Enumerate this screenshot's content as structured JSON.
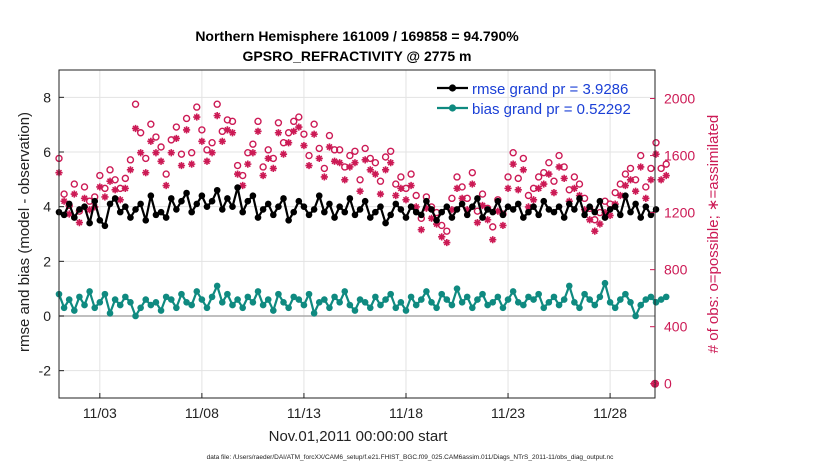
{
  "chart_data": {
    "type": "line",
    "title_line1": "Northern Hemisphere 161009 / 169858 = 94.790%",
    "title_line2": "GPSRO_REFRACTIVITY @ 2775 m",
    "xlabel": "Nov.01,2011 00:00:00 start",
    "ylabel": "rmse and bias (model - observation)",
    "ylabel_right": "# of obs: o=possible; ∗=assimilated",
    "footer": "data file: /Users/raeder/DAI/ATM_forcXX/CAM6_setup/f.e21.FHIST_BGC.f09_025.CAM6assim.011/Diags_NTrS_2011-11/obs_diag_output.nc",
    "xlim": [
      1,
      30.2
    ],
    "ylim": [
      -3,
      9
    ],
    "ylim_right": [
      -100,
      2200
    ],
    "x_tick_values": [
      3,
      8,
      13,
      18,
      23,
      28
    ],
    "x_tick_labels": [
      "11/03",
      "11/08",
      "11/13",
      "11/18",
      "11/23",
      "11/28"
    ],
    "y_ticks": [
      -2,
      0,
      2,
      4,
      6,
      8
    ],
    "y_ticks_right": [
      0,
      400,
      800,
      1200,
      1600,
      2000
    ],
    "grid": true,
    "legend_position": "top-right",
    "colors": {
      "rmse": "#000000",
      "bias": "#0f8a80",
      "obs": "#cc1a55",
      "zero_line": "#aaaaaa",
      "grid": "#e3e3e3"
    },
    "series": [
      {
        "name": "rmse grand pr = 3.9286",
        "axis": "left",
        "marker": "filled-circle",
        "x_start": 1.0,
        "x_step": 0.25,
        "values": [
          3.8,
          3.7,
          4.1,
          3.6,
          3.9,
          4.0,
          3.4,
          4.2,
          3.5,
          3.3,
          4.1,
          4.3,
          3.8,
          4.0,
          3.6,
          3.9,
          4.1,
          3.5,
          4.4,
          3.7,
          3.8,
          3.6,
          4.3,
          3.9,
          4.2,
          4.5,
          3.8,
          4.1,
          4.4,
          4.0,
          4.2,
          4.6,
          3.9,
          4.3,
          4.0,
          4.7,
          3.8,
          4.2,
          4.4,
          3.6,
          3.9,
          4.1,
          3.7,
          4.0,
          4.3,
          3.5,
          3.8,
          4.2,
          4.0,
          3.7,
          3.9,
          4.4,
          3.8,
          4.1,
          3.6,
          4.0,
          3.8,
          4.3,
          3.7,
          3.9,
          4.2,
          3.6,
          3.8,
          4.0,
          3.4,
          3.7,
          4.1,
          3.9,
          3.6,
          4.0,
          3.8,
          3.7,
          4.2,
          3.9,
          3.5,
          3.8,
          4.0,
          3.6,
          3.9,
          4.1,
          3.7,
          4.0,
          4.3,
          3.6,
          3.9,
          3.8,
          4.2,
          3.7,
          4.0,
          3.9,
          4.1,
          3.6,
          3.8,
          4.0,
          3.7,
          4.2,
          3.9,
          3.8,
          4.0,
          3.6,
          4.1,
          3.9,
          4.3,
          3.7,
          4.0,
          3.8,
          4.2,
          3.6,
          3.9,
          4.0,
          3.7,
          4.4,
          3.8,
          4.1,
          3.6,
          4.0,
          3.7,
          3.9
        ]
      },
      {
        "name": "bias grand pr = 0.52292",
        "axis": "left",
        "marker": "filled-circle",
        "x_start": 1.0,
        "x_step": 0.25,
        "values": [
          0.8,
          0.3,
          0.6,
          0.2,
          0.7,
          0.4,
          0.9,
          0.3,
          0.5,
          0.8,
          0.1,
          0.6,
          0.4,
          0.7,
          0.5,
          0.0,
          0.3,
          0.6,
          0.4,
          0.5,
          0.2,
          0.7,
          0.6,
          0.3,
          0.8,
          0.5,
          0.4,
          0.9,
          0.6,
          0.3,
          0.7,
          1.1,
          0.5,
          0.8,
          0.4,
          0.6,
          0.3,
          0.7,
          0.5,
          0.9,
          0.4,
          0.6,
          0.2,
          0.8,
          0.5,
          0.3,
          0.7,
          0.6,
          0.4,
          0.8,
          0.1,
          0.5,
          0.6,
          0.3,
          0.7,
          0.5,
          0.9,
          0.4,
          0.2,
          0.6,
          0.5,
          0.3,
          0.7,
          0.4,
          0.6,
          0.8,
          0.3,
          0.5,
          0.2,
          0.7,
          0.4,
          0.6,
          0.9,
          0.5,
          0.3,
          0.8,
          0.6,
          0.4,
          1.0,
          0.5,
          0.7,
          0.3,
          0.6,
          0.8,
          0.4,
          0.5,
          0.7,
          0.3,
          0.6,
          0.9,
          0.5,
          0.4,
          0.7,
          0.6,
          0.8,
          0.3,
          0.5,
          0.7,
          0.4,
          0.6,
          1.1,
          0.5,
          0.3,
          0.8,
          0.6,
          0.4,
          0.7,
          1.2,
          0.5,
          0.3,
          0.6,
          0.8,
          0.5,
          0.0,
          0.4,
          0.6,
          0.7,
          0.5,
          0.6,
          0.7
        ]
      },
      {
        "name": "obs possible",
        "axis": "right",
        "marker": "open-circle",
        "x_start": 1.0,
        "x_step": 0.25,
        "values": [
          1580,
          1330,
          1250,
          1400,
          1210,
          1380,
          1280,
          1310,
          1460,
          1370,
          1500,
          1430,
          1370,
          1440,
          1570,
          1960,
          1760,
          1580,
          1820,
          1730,
          1660,
          1470,
          1710,
          1800,
          1610,
          1860,
          1620,
          1940,
          1780,
          1640,
          1690,
          1960,
          1770,
          1850,
          1840,
          1530,
          1460,
          1620,
          1680,
          1840,
          1520,
          1640,
          1580,
          1830,
          1690,
          1760,
          1840,
          1870,
          1750,
          1600,
          1820,
          1650,
          1510,
          1740,
          1640,
          1640,
          1520,
          1600,
          1630,
          1430,
          1650,
          1580,
          1550,
          1420,
          1590,
          1630,
          1400,
          1450,
          1370,
          1470,
          1320,
          1160,
          1310,
          1240,
          1200,
          1110,
          1070,
          1300,
          1450,
          1380,
          1300,
          1480,
          1210,
          1330,
          1230,
          1100,
          1290,
          1190,
          1450,
          1620,
          1440,
          1580,
          1320,
          1370,
          1450,
          1480,
          1550,
          1420,
          1600,
          1520,
          1360,
          1450,
          1400,
          1300,
          1230,
          1150,
          1200,
          1280,
          1260,
          1340,
          1400,
          1470,
          1510,
          1430,
          1600,
          1380,
          1510,
          1690,
          1510,
          1540
        ]
      },
      {
        "name": "obs assimilated",
        "axis": "right",
        "marker": "asterisk",
        "x_start": 1.0,
        "x_step": 0.25,
        "values": [
          1480,
          1280,
          1190,
          1330,
          1130,
          1300,
          1220,
          1240,
          1380,
          1310,
          1420,
          1360,
          1290,
          1370,
          1500,
          1790,
          1620,
          1480,
          1700,
          1620,
          1560,
          1390,
          1620,
          1720,
          1530,
          1780,
          1540,
          1870,
          1700,
          1560,
          1620,
          1880,
          1700,
          1780,
          1760,
          1470,
          1390,
          1540,
          1620,
          1770,
          1460,
          1580,
          1510,
          1760,
          1610,
          1690,
          1770,
          1800,
          1670,
          1530,
          1750,
          1580,
          1450,
          1660,
          1560,
          1550,
          1430,
          1520,
          1550,
          1350,
          1570,
          1500,
          1470,
          1330,
          1500,
          1550,
          1320,
          1370,
          1290,
          1390,
          1240,
          1080,
          1230,
          1160,
          1120,
          1030,
          990,
          1220,
          1370,
          1300,
          1220,
          1400,
          1130,
          1250,
          1150,
          1010,
          1210,
          1110,
          1370,
          1540,
          1360,
          1500,
          1240,
          1290,
          1370,
          1400,
          1470,
          1340,
          1520,
          1440,
          1280,
          1370,
          1320,
          1220,
          1150,
          1070,
          1120,
          1200,
          1180,
          1260,
          1320,
          1390,
          1430,
          1350,
          1520,
          1300,
          1430,
          1610,
          1430,
          1460
        ]
      }
    ],
    "extra_points": [
      {
        "x": 30.2,
        "y_right": 0,
        "label": "0 obs marker"
      }
    ]
  }
}
